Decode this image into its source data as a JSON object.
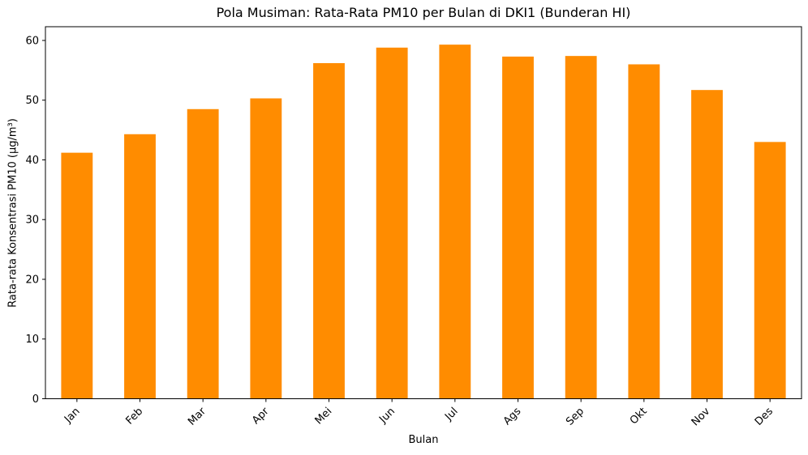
{
  "figure": {
    "background": "#ffffff",
    "text_color": "#000000",
    "spine_color": "#000000"
  },
  "chart_data": {
    "type": "bar",
    "title": "Pola Musiman: Rata-Rata PM10 per Bulan di DKI1 (Bunderan HI)",
    "xlabel": "Bulan",
    "ylabel": "Rata-rata Konsentrasi PM10 (µg/m³)",
    "categories": [
      "Jan",
      "Feb",
      "Mar",
      "Apr",
      "Mei",
      "Jun",
      "Jul",
      "Ags",
      "Sep",
      "Okt",
      "Nov",
      "Des"
    ],
    "values": [
      41.2,
      44.3,
      48.5,
      50.3,
      56.2,
      58.8,
      59.3,
      57.3,
      57.4,
      56.0,
      51.7,
      43.0
    ],
    "ylim": [
      0,
      62.3
    ],
    "yticks": [
      0,
      10,
      20,
      30,
      40,
      50,
      60
    ],
    "bar_color": "#FF8C00",
    "bar_width_fraction": 0.5,
    "xtick_rotation": 45,
    "grid": false,
    "legend_position": "none"
  }
}
